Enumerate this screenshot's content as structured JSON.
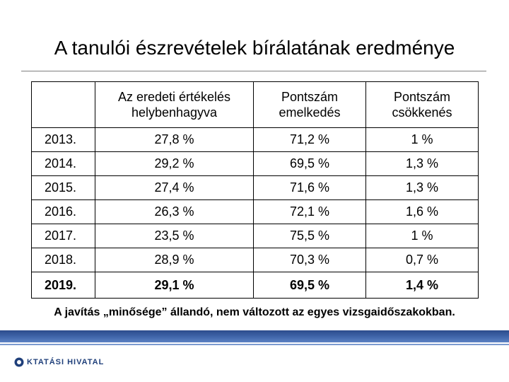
{
  "title": "A tanulói észrevételek bírálatának eredménye",
  "table": {
    "headers": [
      "",
      "Az eredeti értékelés helybenhagyva",
      "Pontszám emelkedés",
      "Pontszám csökkenés"
    ],
    "rows": [
      {
        "year": "2013.",
        "kept": "27,8 %",
        "raised": "71,2 %",
        "lowered": "1 %"
      },
      {
        "year": "2014.",
        "kept": "29,2 %",
        "raised": "69,5 %",
        "lowered": "1,3 %"
      },
      {
        "year": "2015.",
        "kept": "27,4 %",
        "raised": "71,6 %",
        "lowered": "1,3 %"
      },
      {
        "year": "2016.",
        "kept": "26,3 %",
        "raised": "72,1 %",
        "lowered": "1,6 %"
      },
      {
        "year": "2017.",
        "kept": "23,5 %",
        "raised": "75,5 %",
        "lowered": "1 %"
      },
      {
        "year": "2018.",
        "kept": "28,9 %",
        "raised": "70,3 %",
        "lowered": "0,7 %"
      },
      {
        "year": "2019.",
        "kept": "29,1 %",
        "raised": "69,5 %",
        "lowered": "1,4 %"
      }
    ]
  },
  "note": "A javítás „minősége” állandó, nem változott az egyes vizsgaidőszakokban.",
  "footer": {
    "logo_text": "KTATÁSI HIVATAL"
  },
  "colors": {
    "band": "#3f64a8",
    "logo": "#1f3f7a"
  }
}
